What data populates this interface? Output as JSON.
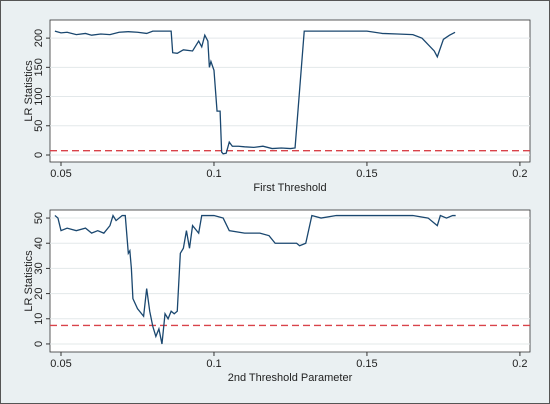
{
  "chart_data": [
    {
      "type": "line",
      "xlabel": "First Threshold",
      "ylabel": "LR Statistics",
      "x": [
        0.048,
        0.05,
        0.052,
        0.055,
        0.058,
        0.06,
        0.063,
        0.066,
        0.069,
        0.072,
        0.075,
        0.078,
        0.08,
        0.083,
        0.086,
        0.0865,
        0.088,
        0.09,
        0.093,
        0.095,
        0.096,
        0.097,
        0.098,
        0.0985,
        0.099,
        0.1,
        0.1005,
        0.101,
        0.102,
        0.1025,
        0.103,
        0.104,
        0.105,
        0.106,
        0.108,
        0.11,
        0.113,
        0.116,
        0.119,
        0.122,
        0.125,
        0.1265,
        0.1295,
        0.135,
        0.14,
        0.148,
        0.15,
        0.155,
        0.16,
        0.165,
        0.168,
        0.172,
        0.173,
        0.175,
        0.177,
        0.1788
      ],
      "values": [
        212,
        209,
        210,
        206,
        208,
        205,
        207,
        206,
        210,
        211,
        210,
        208,
        212,
        212,
        212,
        175,
        174,
        180,
        178,
        195,
        185,
        205,
        195,
        150,
        160,
        145,
        110,
        75,
        75,
        5,
        2,
        3,
        22,
        15,
        15,
        14,
        13,
        15,
        11,
        12,
        11,
        12,
        212,
        212,
        212,
        212,
        212,
        208,
        207,
        206,
        200,
        178,
        168,
        198,
        205,
        210
      ],
      "color": "#1a476f",
      "reference_line": {
        "value": 7.35,
        "color": "#d9434a"
      },
      "xlim": [
        0.0464,
        0.2033
      ],
      "xticks": [
        0.05,
        0.1,
        0.15,
        0.2
      ],
      "ylim": [
        -12,
        231
      ],
      "yticks": [
        0,
        50,
        100,
        150,
        200
      ],
      "grid": true
    },
    {
      "type": "line",
      "xlabel": "2nd Threshold Parameter",
      "ylabel": "LR Statistics",
      "x": [
        0.048,
        0.049,
        0.05,
        0.052,
        0.055,
        0.058,
        0.06,
        0.062,
        0.064,
        0.066,
        0.067,
        0.068,
        0.07,
        0.071,
        0.072,
        0.0725,
        0.073,
        0.0735,
        0.075,
        0.077,
        0.078,
        0.079,
        0.08,
        0.081,
        0.082,
        0.083,
        0.084,
        0.085,
        0.086,
        0.087,
        0.088,
        0.089,
        0.09,
        0.091,
        0.092,
        0.093,
        0.095,
        0.096,
        0.1,
        0.103,
        0.105,
        0.11,
        0.115,
        0.118,
        0.12,
        0.125,
        0.127,
        0.128,
        0.13,
        0.132,
        0.135,
        0.14,
        0.15,
        0.16,
        0.165,
        0.17,
        0.172,
        0.173,
        0.174,
        0.176,
        0.178,
        0.179
      ],
      "values": [
        51,
        50,
        45,
        46,
        45,
        46,
        44,
        45,
        44,
        47,
        51,
        49,
        51,
        51,
        36,
        37,
        30,
        18,
        14,
        11,
        22,
        13,
        7,
        3,
        6,
        0,
        12,
        10,
        13,
        12,
        13,
        36,
        38,
        45,
        38,
        47,
        44,
        51,
        51,
        50,
        45,
        44,
        44,
        43,
        40,
        40,
        40,
        39,
        40,
        51,
        50,
        51,
        51,
        51,
        51,
        50,
        48,
        47,
        51,
        50,
        51,
        51
      ],
      "color": "#1a476f",
      "reference_line": {
        "value": 7.35,
        "color": "#d9434a"
      },
      "xlim": [
        0.0464,
        0.2033
      ],
      "xticks": [
        0.05,
        0.1,
        0.15,
        0.2
      ],
      "ylim": [
        -3.2,
        53.2
      ],
      "yticks": [
        0,
        10,
        20,
        30,
        40,
        50
      ],
      "grid": true
    }
  ]
}
